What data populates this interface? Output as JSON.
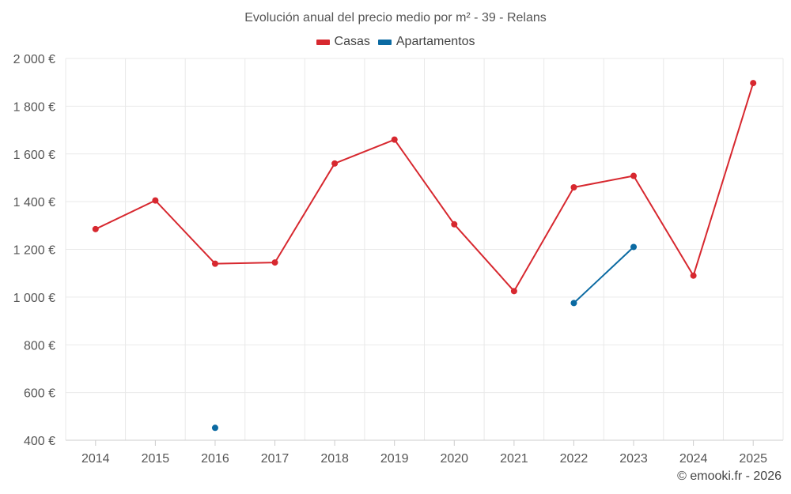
{
  "chart_data": {
    "type": "line",
    "title": "Evolución anual del precio medio por m² - 39 - Relans",
    "categories": [
      "2014",
      "2015",
      "2016",
      "2017",
      "2018",
      "2019",
      "2020",
      "2021",
      "2022",
      "2023",
      "2024",
      "2025"
    ],
    "series": [
      {
        "name": "Casas",
        "color": "#d7282f",
        "values": [
          1285,
          1405,
          1140,
          1145,
          1560,
          1660,
          1305,
          1025,
          1460,
          1508,
          1090,
          1897
        ]
      },
      {
        "name": "Apartamentos",
        "color": "#0b6aa2",
        "values": [
          null,
          null,
          452,
          null,
          null,
          null,
          null,
          null,
          975,
          1210,
          null,
          null
        ]
      }
    ],
    "ylim": [
      400,
      2000
    ],
    "yticks": [
      400,
      600,
      800,
      1000,
      1200,
      1400,
      1600,
      1800,
      2000
    ],
    "ytick_labels": [
      "400 €",
      "600 €",
      "800 €",
      "1 000 €",
      "1 200 €",
      "1 400 €",
      "1 600 €",
      "1 800 €",
      "2 000 €"
    ],
    "xlabel": "",
    "ylabel": "",
    "legend_position": "top-center",
    "grid": true
  },
  "credit": "© emooki.fr - 2026"
}
